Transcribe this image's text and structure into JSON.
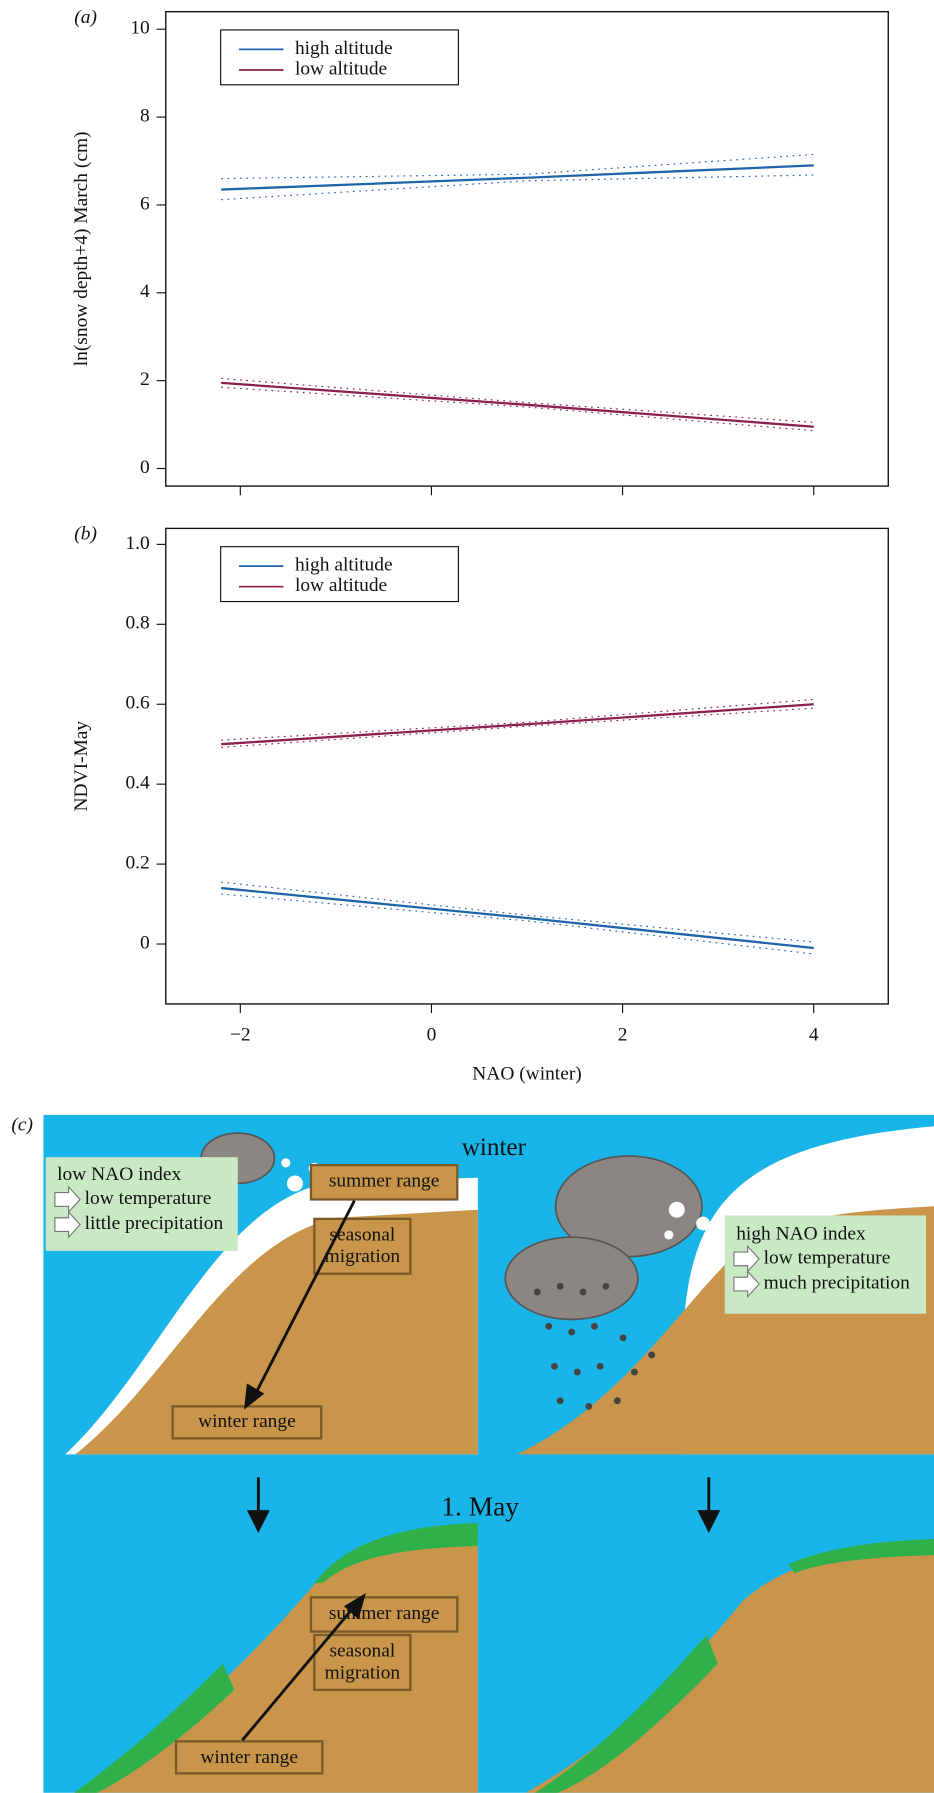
{
  "chart_data": [
    {
      "type": "line",
      "panel_label": "(a)",
      "ylabel": "ln(snow depth+4) March (cm)",
      "x": [
        -2.2,
        1,
        4
      ],
      "series": [
        {
          "name": "high altitude",
          "color": "#1f64a8",
          "values": [
            6.35,
            6.62,
            6.9
          ],
          "ci_lower": [
            6.12,
            6.55,
            6.68
          ],
          "ci_upper": [
            6.6,
            6.7,
            7.15
          ]
        },
        {
          "name": "low altitude",
          "color": "#8b1f4e",
          "values": [
            1.95,
            1.45,
            0.95
          ],
          "ci_lower": [
            1.85,
            1.4,
            0.86
          ],
          "ci_upper": [
            2.05,
            1.5,
            1.05
          ]
        }
      ],
      "xlim": [
        -2.78,
        4.78
      ],
      "xticks": [
        -2,
        0,
        2,
        4
      ],
      "xtick_labels": false,
      "ylim": [
        -0.4,
        10.4
      ],
      "yticks": [
        0,
        2,
        4,
        6,
        8,
        10
      ],
      "legend": "upper left"
    },
    {
      "type": "line",
      "panel_label": "(b)",
      "xlabel": "NAO (winter)",
      "ylabel": "NDVI-May",
      "x": [
        -2.2,
        1,
        4
      ],
      "series": [
        {
          "name": "high altitude",
          "color": "#1f64a8",
          "values": [
            0.14,
            0.065,
            -0.01
          ],
          "ci_lower": [
            0.125,
            0.058,
            -0.025
          ],
          "ci_upper": [
            0.155,
            0.072,
            0.005
          ]
        },
        {
          "name": "low altitude",
          "color": "#8b1f4e",
          "values": [
            0.5,
            0.55,
            0.6
          ],
          "ci_lower": [
            0.492,
            0.545,
            0.59
          ],
          "ci_upper": [
            0.51,
            0.555,
            0.612
          ]
        }
      ],
      "xlim": [
        -2.78,
        4.78
      ],
      "xticks": [
        {
          "value": -2,
          "label": "−2"
        },
        0,
        2,
        4
      ],
      "xtick_labels": true,
      "ylim": [
        -0.15,
        1.04
      ],
      "yticks": [
        0,
        0.2,
        0.4,
        0.6,
        0.8,
        {
          "value": 1,
          "label": "1.0"
        }
      ],
      "legend": "upper left"
    }
  ],
  "diagram": {
    "label": "(c)",
    "winter_title": "winter",
    "may_title": "1. May",
    "low_nao": {
      "title": "low NAO index",
      "items": [
        "low temperature",
        "little precipitation"
      ]
    },
    "high_nao": {
      "title": "high NAO index",
      "items": [
        "low temperature",
        "much precipitation"
      ]
    },
    "winter_ranges": {
      "summer": "summer range",
      "migration": [
        "seasonal",
        "migration"
      ],
      "winter": "winter range"
    },
    "may_ranges": {
      "summer": "summer range",
      "migration": [
        "seasonal",
        "migration"
      ],
      "winter": "winter range"
    }
  }
}
